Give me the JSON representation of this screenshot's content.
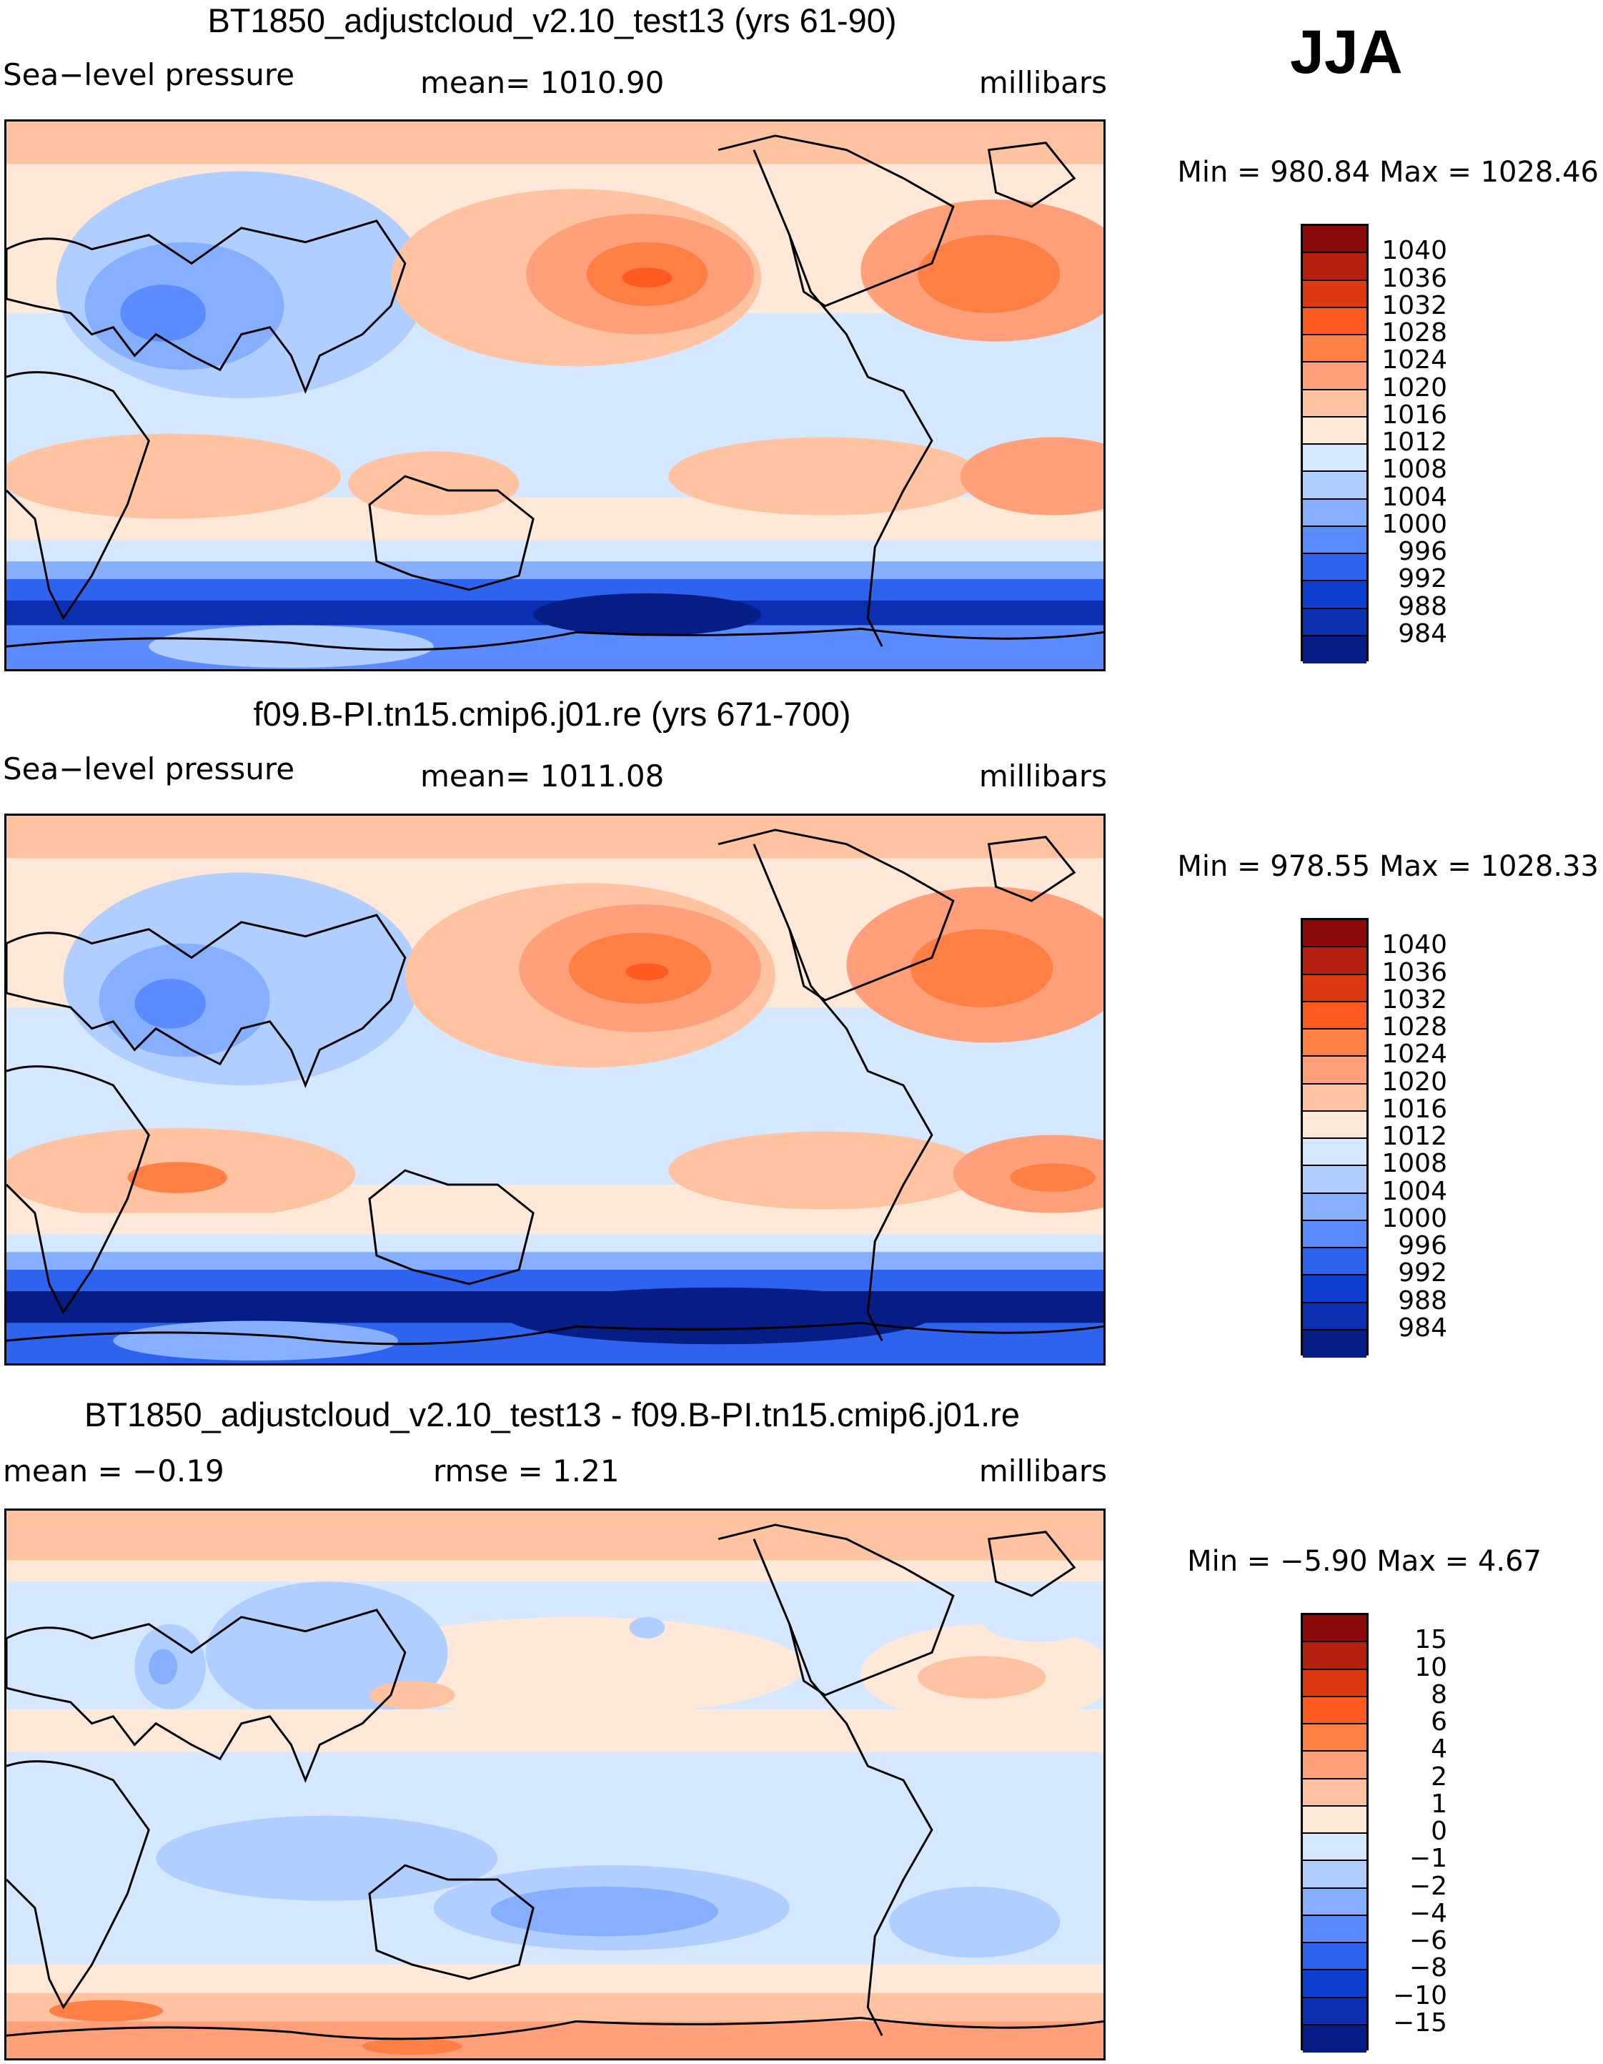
{
  "season": "JJA",
  "panels": [
    {
      "id": "model",
      "title": "BT1850_adjustcloud_v2.10_test13 (yrs 61-90)",
      "left_label": "Sea−level pressure",
      "center_label": "mean=  1010.90",
      "units": "millibars",
      "minmax": "Min  =  980.84  Max  =  1028.46"
    },
    {
      "id": "control",
      "title": "f09.B-PI.tn15.cmip6.j01.re (yrs 671-700)",
      "left_label": "Sea−level pressure",
      "center_label": "mean=  1011.08",
      "units": "millibars",
      "minmax": "Min  =  978.55  Max  =  1028.33"
    },
    {
      "id": "difference",
      "title": "BT1850_adjustcloud_v2.10_test13 - f09.B-PI.tn15.cmip6.j01.re",
      "left_label": "mean  =    −0.19",
      "center_label": "rmse  =     1.21",
      "units": "millibars",
      "minmax": "Min  =    −5.90  Max  =     4.67"
    }
  ],
  "colorbars": {
    "absolute": {
      "labels": [
        "1040",
        "1036",
        "1032",
        "1028",
        "1024",
        "1020",
        "1016",
        "1012",
        "1008",
        "1004",
        "1000",
        "996",
        "992",
        "988",
        "984"
      ],
      "colors": [
        "#8c0a0a",
        "#b3200d",
        "#dd3a12",
        "#ff5a22",
        "#ff7f45",
        "#ffa07a",
        "#ffc3a2",
        "#ffe8d8",
        "#d6e8ff",
        "#b0ceff",
        "#86afff",
        "#5a8cff",
        "#2e63f0",
        "#0f3fd0",
        "#0a2fb0",
        "#051d85"
      ]
    },
    "difference": {
      "labels": [
        "15",
        "10",
        "8",
        "6",
        "4",
        "2",
        "1",
        "0",
        "−1",
        "−2",
        "−4",
        "−6",
        "−8",
        "−10",
        "−15"
      ],
      "colors": [
        "#8c0a0a",
        "#b3200d",
        "#dd3a12",
        "#ff5a22",
        "#ff7f45",
        "#ffa07a",
        "#ffc3a2",
        "#ffe8d8",
        "#d6e8ff",
        "#b0ceff",
        "#86afff",
        "#5a8cff",
        "#2e63f0",
        "#0f3fd0",
        "#0a2fb0",
        "#051d85"
      ]
    }
  }
}
